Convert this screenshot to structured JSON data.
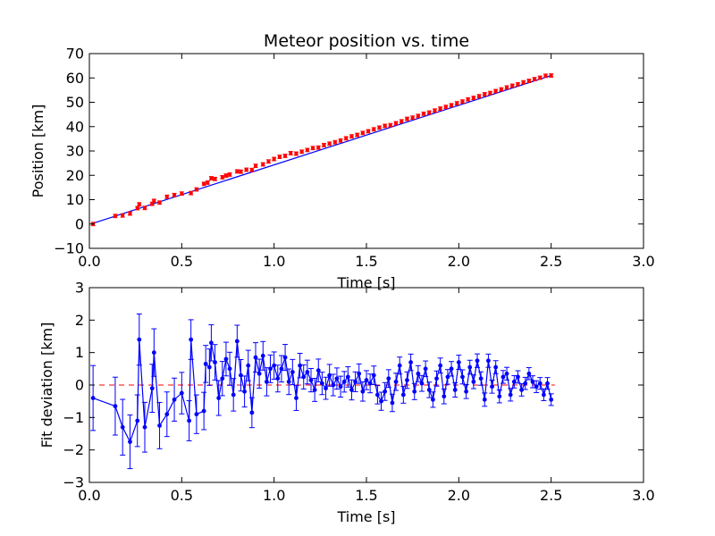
{
  "chart_data": [
    {
      "type": "scatter",
      "title": "Meteor position vs. time",
      "xlabel": "Time [s]",
      "ylabel": "Position [km]",
      "xlim": [
        0.0,
        3.0
      ],
      "ylim": [
        -10,
        70
      ],
      "xticks": [
        0.0,
        0.5,
        1.0,
        1.5,
        2.0,
        2.5,
        3.0
      ],
      "yticks": [
        -10,
        0,
        10,
        20,
        30,
        40,
        50,
        60,
        70
      ],
      "xtick_labels": [
        "0.0",
        "0.5",
        "1.0",
        "1.5",
        "2.0",
        "2.5",
        "3.0"
      ],
      "ytick_labels": [
        "−10",
        "0",
        "10",
        "20",
        "30",
        "40",
        "50",
        "60",
        "70"
      ],
      "grid": false,
      "colors": {
        "points": "#ff0000",
        "fit": "#0000ff"
      },
      "fit_line": {
        "x": [
          0.02,
          2.5
        ],
        "y": [
          0.3,
          61.0
        ]
      },
      "series": [
        {
          "x": [
            0.02,
            0.14,
            0.18,
            0.22,
            0.26,
            0.27,
            0.3,
            0.34,
            0.35,
            0.38,
            0.42,
            0.46,
            0.5,
            0.55,
            0.58,
            0.62,
            0.64,
            0.66,
            0.68,
            0.72,
            0.74,
            0.76,
            0.8,
            0.82,
            0.85,
            0.88,
            0.9,
            0.94,
            0.97,
            1.0,
            1.03,
            1.06,
            1.09,
            1.12,
            1.15,
            1.18,
            1.21,
            1.24,
            1.27,
            1.3,
            1.33,
            1.36,
            1.39,
            1.42,
            1.45,
            1.48,
            1.51,
            1.54,
            1.57,
            1.6,
            1.63,
            1.66,
            1.69,
            1.72,
            1.75,
            1.78,
            1.81,
            1.84,
            1.87,
            1.9,
            1.93,
            1.96,
            1.99,
            2.02,
            2.05,
            2.08,
            2.11,
            2.14,
            2.17,
            2.2,
            2.23,
            2.26,
            2.29,
            2.32,
            2.35,
            2.38,
            2.41,
            2.44,
            2.47,
            2.5
          ],
          "y": [
            0.0,
            3.3,
            3.5,
            4.3,
            6.5,
            8.1,
            6.6,
            8.3,
            9.5,
            8.8,
            11.2,
            11.9,
            12.5,
            12.7,
            14.2,
            16.5,
            17.0,
            18.8,
            18.5,
            19.2,
            19.9,
            20.3,
            21.6,
            21.5,
            22.3,
            22.2,
            23.9,
            24.5,
            25.7,
            26.7,
            27.6,
            28.0,
            29.1,
            28.9,
            29.7,
            30.4,
            31.2,
            31.4,
            32.4,
            33.0,
            33.6,
            34.3,
            35.2,
            36.0,
            36.6,
            37.4,
            38.1,
            38.9,
            39.6,
            40.3,
            40.6,
            41.4,
            42.2,
            43.2,
            43.7,
            44.4,
            45.3,
            45.8,
            46.6,
            47.4,
            48.1,
            48.8,
            49.6,
            50.3,
            51.2,
            51.8,
            52.5,
            53.3,
            53.8,
            54.6,
            55.3,
            56.1,
            56.8,
            57.4,
            58.2,
            58.8,
            59.5,
            60.1,
            60.9,
            61.0
          ],
          "yerr": 0.7
        }
      ]
    },
    {
      "type": "line",
      "title": "",
      "xlabel": "Time [s]",
      "ylabel": "Fit deviation [km]",
      "xlim": [
        0.0,
        3.0
      ],
      "ylim": [
        -3,
        3
      ],
      "xticks": [
        0.0,
        0.5,
        1.0,
        1.5,
        2.0,
        2.5,
        3.0
      ],
      "yticks": [
        -3,
        -2,
        -1,
        0,
        1,
        2,
        3
      ],
      "xtick_labels": [
        "0.0",
        "0.5",
        "1.0",
        "1.5",
        "2.0",
        "2.5",
        "3.0"
      ],
      "ytick_labels": [
        "−3",
        "−2",
        "−1",
        "0",
        "1",
        "2",
        "3"
      ],
      "grid": false,
      "colors": {
        "series": "#0000ff",
        "reference": "#ff0000"
      },
      "reference_line": {
        "y": 0
      },
      "series": [
        {
          "x": [
            0.02,
            0.14,
            0.18,
            0.22,
            0.26,
            0.27,
            0.3,
            0.34,
            0.35,
            0.38,
            0.42,
            0.46,
            0.5,
            0.54,
            0.55,
            0.58,
            0.62,
            0.63,
            0.65,
            0.66,
            0.68,
            0.7,
            0.72,
            0.74,
            0.76,
            0.78,
            0.8,
            0.82,
            0.84,
            0.86,
            0.88,
            0.9,
            0.92,
            0.94,
            0.96,
            0.98,
            1.0,
            1.02,
            1.04,
            1.06,
            1.08,
            1.1,
            1.12,
            1.14,
            1.16,
            1.18,
            1.2,
            1.22,
            1.24,
            1.26,
            1.28,
            1.3,
            1.32,
            1.34,
            1.36,
            1.38,
            1.4,
            1.42,
            1.44,
            1.46,
            1.48,
            1.5,
            1.52,
            1.54,
            1.56,
            1.58,
            1.6,
            1.62,
            1.64,
            1.66,
            1.68,
            1.7,
            1.72,
            1.74,
            1.76,
            1.78,
            1.8,
            1.82,
            1.84,
            1.86,
            1.88,
            1.9,
            1.92,
            1.94,
            1.96,
            1.98,
            2.0,
            2.02,
            2.04,
            2.06,
            2.08,
            2.1,
            2.12,
            2.14,
            2.16,
            2.18,
            2.2,
            2.22,
            2.24,
            2.26,
            2.28,
            2.3,
            2.32,
            2.34,
            2.36,
            2.38,
            2.4,
            2.42,
            2.44,
            2.46,
            2.48,
            2.5
          ],
          "y": [
            -0.4,
            -0.65,
            -1.3,
            -1.75,
            -1.1,
            1.4,
            -1.3,
            -0.1,
            1.0,
            -1.25,
            -0.9,
            -0.45,
            -0.25,
            -1.1,
            1.4,
            -0.9,
            -0.8,
            0.65,
            0.55,
            1.3,
            0.7,
            -0.4,
            0.2,
            0.8,
            0.5,
            -0.3,
            1.35,
            0.3,
            -0.2,
            0.6,
            -0.85,
            0.85,
            0.35,
            0.9,
            0.1,
            0.5,
            0.6,
            0.2,
            0.5,
            0.85,
            0.1,
            0.4,
            -0.4,
            0.6,
            0.25,
            0.4,
            0.15,
            -0.15,
            0.45,
            0.05,
            -0.1,
            0.3,
            0.0,
            0.2,
            -0.05,
            0.1,
            0.25,
            -0.15,
            0.1,
            0.35,
            -0.2,
            0.15,
            0.05,
            0.3,
            -0.3,
            -0.5,
            -0.2,
            0.2,
            -0.55,
            0.1,
            0.6,
            -0.3,
            0.15,
            0.7,
            -0.2,
            0.35,
            0.05,
            0.5,
            -0.15,
            -0.45,
            0.2,
            0.6,
            -0.35,
            0.25,
            0.5,
            -0.15,
            0.7,
            0.25,
            -0.2,
            0.55,
            0.1,
            0.75,
            0.2,
            -0.45,
            0.75,
            -0.05,
            0.55,
            -0.35,
            0.25,
            0.35,
            -0.3,
            0.1,
            0.25,
            -0.15,
            0.05,
            0.35,
            0.1,
            -0.05,
            0.05,
            -0.3,
            0.05,
            -0.45
          ]
        }
      ]
    }
  ]
}
